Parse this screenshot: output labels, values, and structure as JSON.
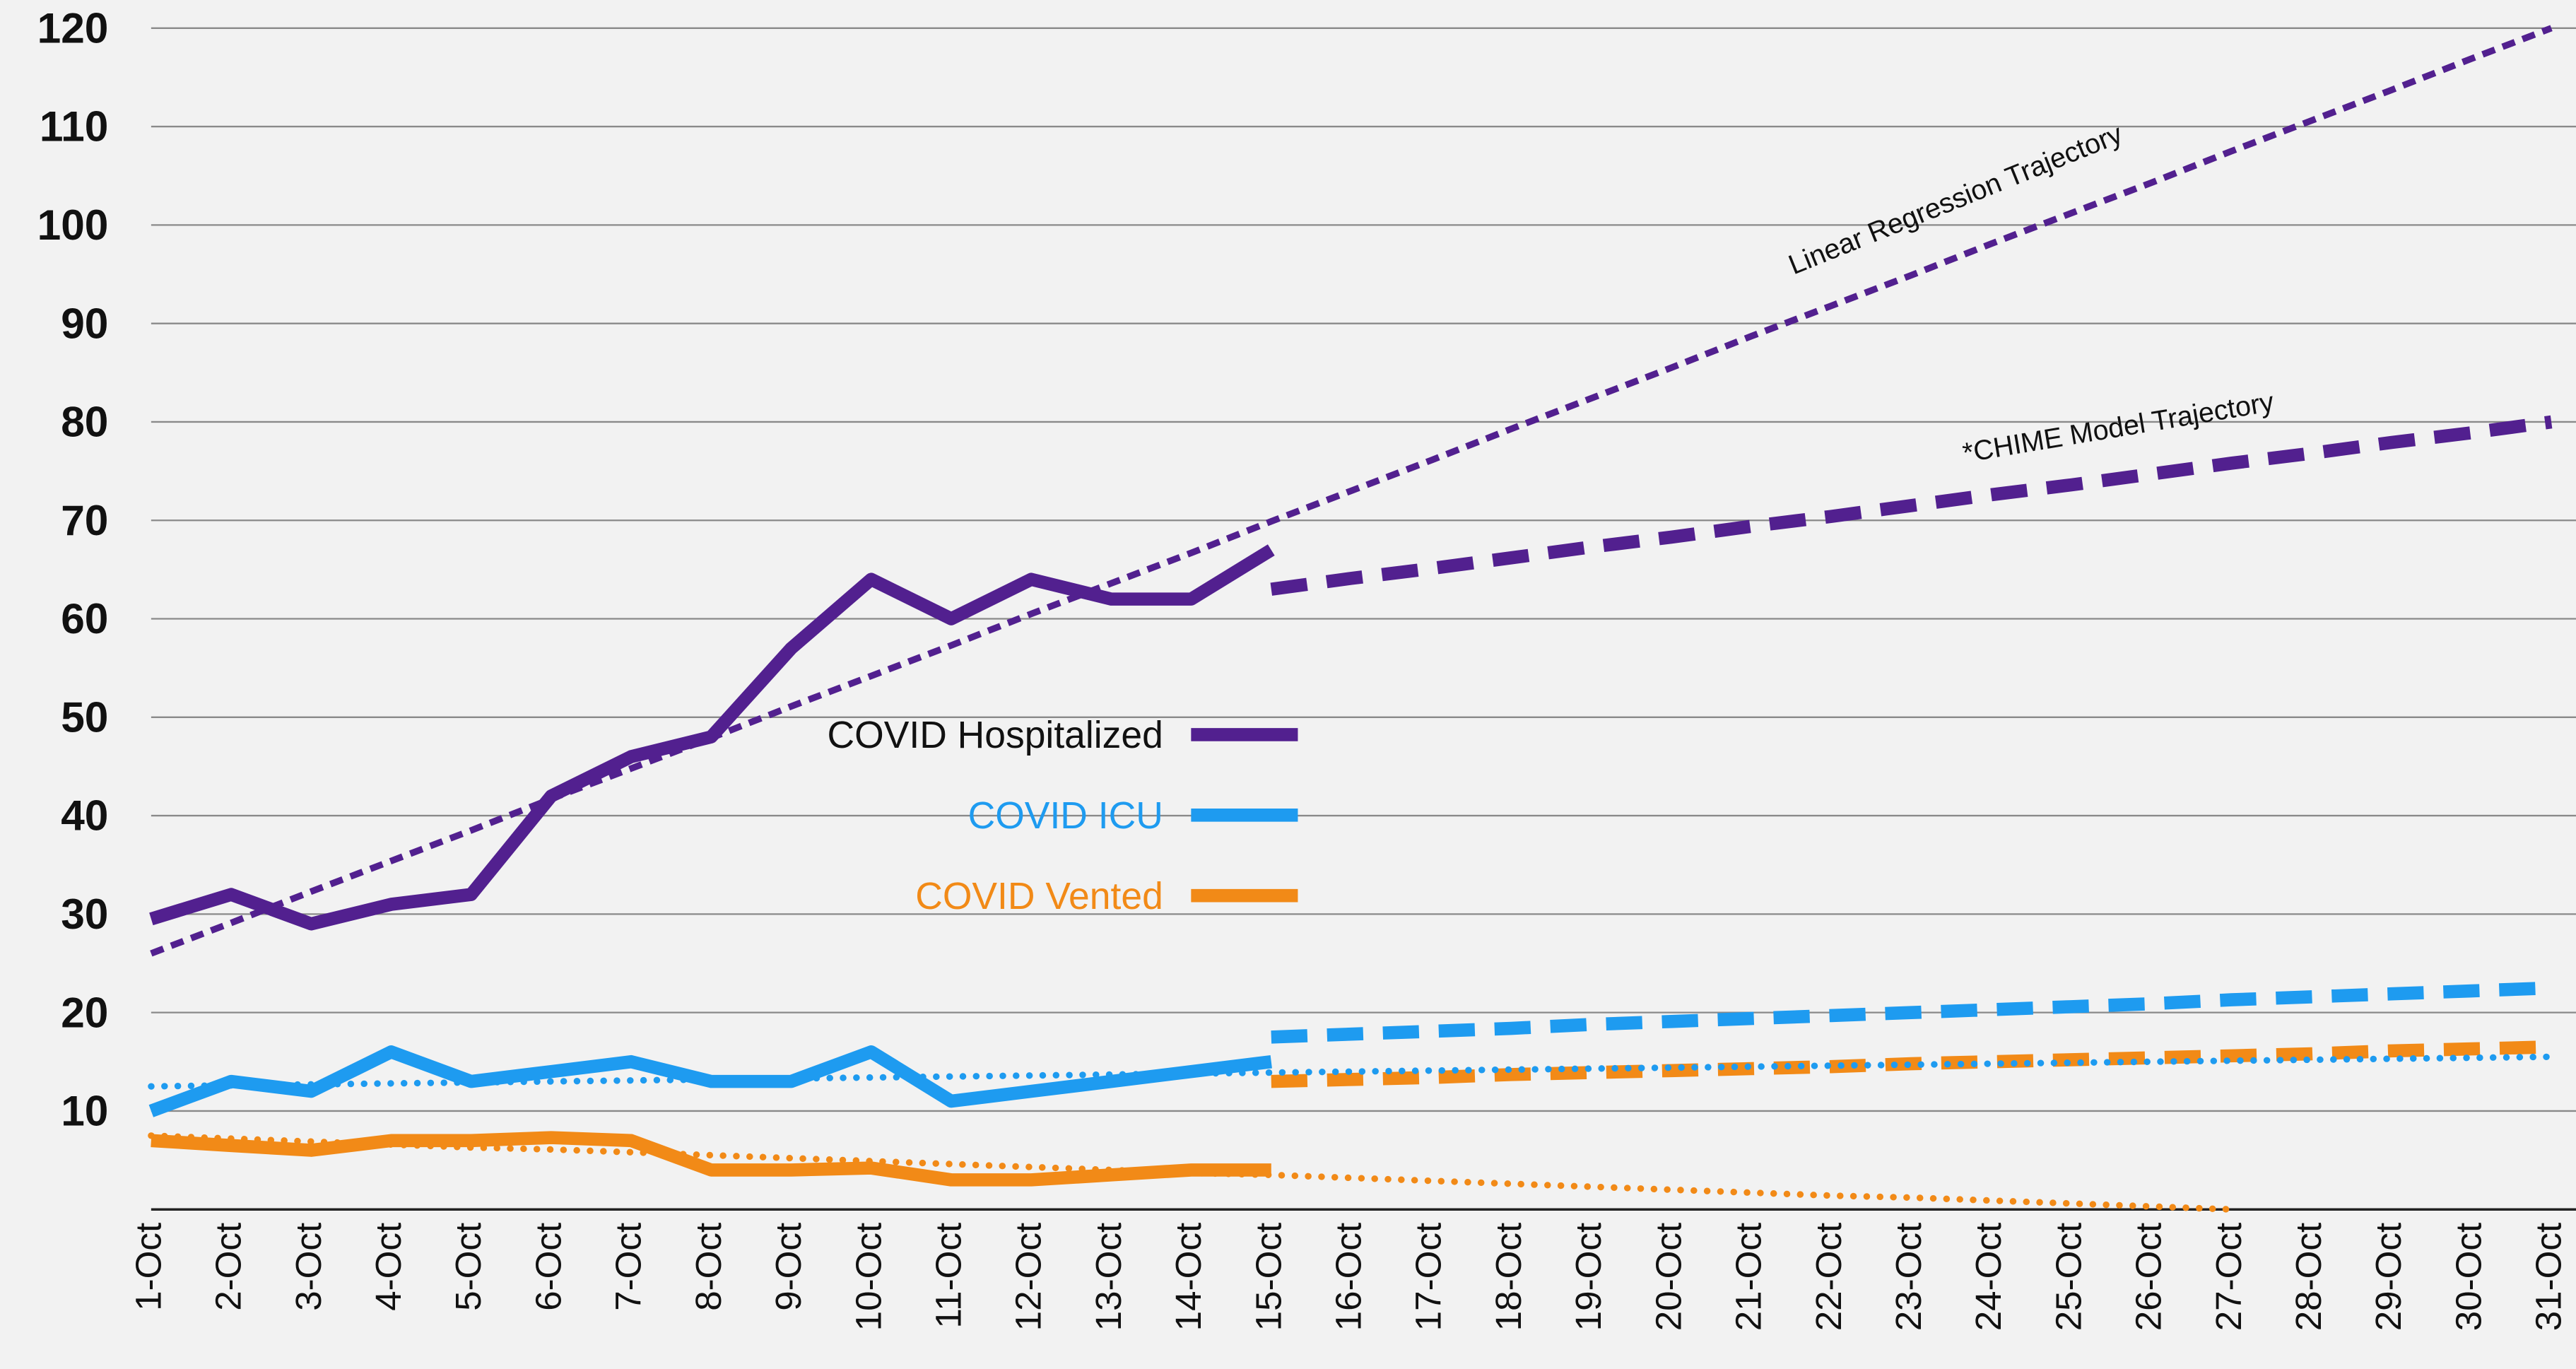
{
  "chart_data": {
    "type": "line",
    "categories": [
      "1-Oct",
      "2-Oct",
      "3-Oct",
      "4-Oct",
      "5-Oct",
      "6-Oct",
      "7-Oct",
      "8-Oct",
      "9-Oct",
      "10-Oct",
      "11-Oct",
      "12-Oct",
      "13-Oct",
      "14-Oct",
      "15-Oct",
      "16-Oct",
      "17-Oct",
      "18-Oct",
      "19-Oct",
      "20-Oct",
      "21-Oct",
      "22-Oct",
      "23-Oct",
      "24-Oct",
      "25-Oct",
      "26-Oct",
      "27-Oct",
      "28-Oct",
      "29-Oct",
      "30-Oct",
      "31-Oct"
    ],
    "ylim": [
      0,
      120
    ],
    "yticks": [
      10,
      20,
      30,
      40,
      50,
      60,
      70,
      80,
      90,
      100,
      110,
      120
    ],
    "grid": true,
    "legend": "center",
    "annotations": [
      "Linear Regression Trajectory",
      "*CHIME Model Trajectory"
    ],
    "series": [
      {
        "name": "COVID Hospitalized",
        "color": "#52208f",
        "style": "solid",
        "values": [
          29.5,
          32,
          29,
          31,
          32,
          42,
          46,
          48,
          57,
          64,
          60,
          64,
          62,
          62,
          67,
          null,
          null,
          null,
          null,
          null,
          null,
          null,
          null,
          null,
          null,
          null,
          null,
          null,
          null,
          null,
          null
        ]
      },
      {
        "name": "COVID ICU",
        "color": "#1e9bf0",
        "style": "solid",
        "values": [
          10,
          13,
          12,
          16,
          13,
          14,
          15,
          13,
          13,
          16,
          11,
          12,
          13,
          14,
          15,
          null,
          null,
          null,
          null,
          null,
          null,
          null,
          null,
          null,
          null,
          null,
          null,
          null,
          null,
          null,
          null
        ]
      },
      {
        "name": "COVID Vented",
        "color": "#f28a17",
        "style": "solid",
        "values": [
          7,
          6.5,
          6,
          7,
          7,
          7.3,
          7,
          4,
          4,
          4.2,
          3,
          3,
          3.5,
          4,
          4,
          null,
          null,
          null,
          null,
          null,
          null,
          null,
          null,
          null,
          null,
          null,
          null,
          null,
          null,
          null,
          null
        ]
      },
      {
        "color": "#52208f",
        "style": "dotted-wide",
        "values": [
          26,
          29.1,
          32.3,
          35.4,
          38.5,
          41.7,
          44.8,
          47.9,
          51.1,
          54.2,
          57.3,
          60.5,
          63.6,
          66.7,
          69.9,
          73,
          76.1,
          79.3,
          82.4,
          85.5,
          88.7,
          91.8,
          94.9,
          98.1,
          101.2,
          104.3,
          107.5,
          110.6,
          113.7,
          116.9,
          120
        ]
      },
      {
        "color": "#52208f",
        "style": "dashed",
        "values": [
          null,
          null,
          null,
          null,
          null,
          null,
          null,
          null,
          null,
          null,
          null,
          null,
          null,
          null,
          63,
          64.1,
          65.1,
          66.2,
          67.3,
          68.3,
          69.4,
          70.4,
          71.5,
          72.6,
          73.6,
          74.7,
          75.8,
          76.8,
          77.9,
          78.9,
          80
        ]
      },
      {
        "color": "#1e9bf0",
        "style": "dashed",
        "values": [
          null,
          null,
          null,
          null,
          null,
          null,
          null,
          null,
          null,
          null,
          null,
          null,
          null,
          null,
          17.5,
          17.8,
          18.1,
          18.4,
          18.8,
          19.1,
          19.4,
          19.7,
          20,
          20.3,
          20.6,
          20.9,
          21.3,
          21.6,
          21.9,
          22.2,
          22.5
        ]
      },
      {
        "color": "#f28a17",
        "style": "dashed",
        "values": [
          null,
          null,
          null,
          null,
          null,
          null,
          null,
          null,
          null,
          null,
          null,
          null,
          null,
          null,
          13,
          13.2,
          13.4,
          13.7,
          13.9,
          14.1,
          14.3,
          14.5,
          14.8,
          15,
          15.2,
          15.4,
          15.6,
          15.8,
          16.1,
          16.3,
          16.5
        ]
      },
      {
        "color": "#1e9bf0",
        "style": "dotted",
        "values": [
          12.5,
          12.6,
          12.7,
          12.8,
          12.9,
          13,
          13.1,
          13.2,
          13.3,
          13.4,
          13.5,
          13.6,
          13.7,
          13.8,
          13.9,
          14,
          14.1,
          14.2,
          14.3,
          14.4,
          14.5,
          14.6,
          14.7,
          14.8,
          14.9,
          15,
          15.1,
          15.2,
          15.3,
          15.4,
          15.5
        ]
      },
      {
        "color": "#f28a17",
        "style": "dotted",
        "values": [
          7.5,
          7.2,
          6.9,
          6.6,
          6.3,
          6.1,
          5.8,
          5.5,
          5.2,
          4.9,
          4.6,
          4.3,
          4,
          3.7,
          3.5,
          3.2,
          2.9,
          2.6,
          2.3,
          2,
          1.7,
          1.4,
          1.2,
          0.9,
          0.6,
          0.3,
          0,
          null,
          null,
          null,
          null
        ]
      }
    ]
  }
}
